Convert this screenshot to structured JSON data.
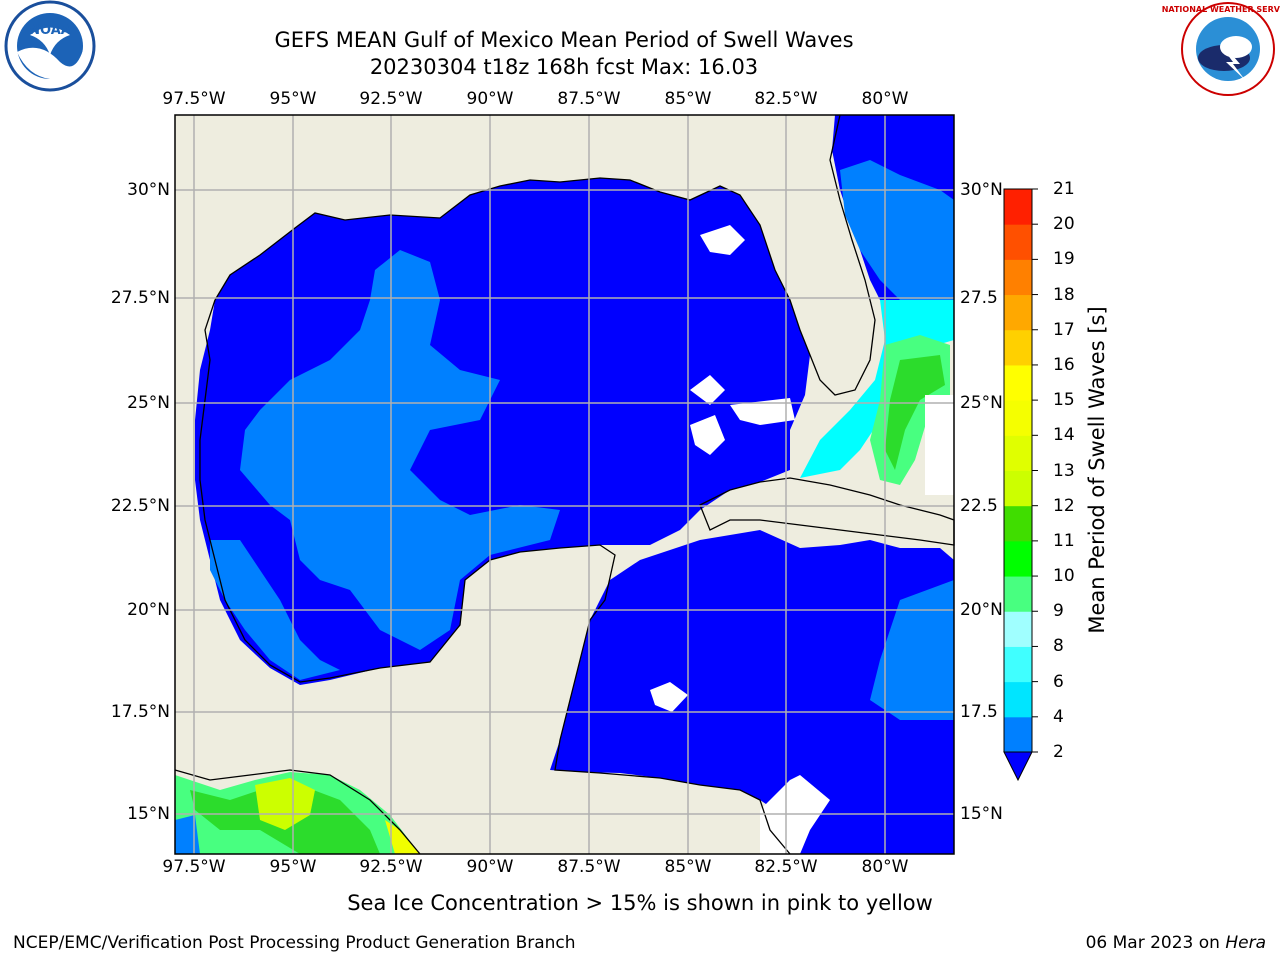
{
  "title": {
    "line1": "GEFS MEAN Gulf of Mexico Mean Period of Swell Waves",
    "line2": "20230304 t18z 168h fcst   Max: 16.03"
  },
  "map": {
    "longitude_labels": [
      "97.5°W",
      "95°W",
      "92.5°W",
      "90°W",
      "87.5°W",
      "85°W",
      "82.5°W",
      "80°W"
    ],
    "latitude_labels_left": [
      "30°N",
      "27.5°N",
      "25°N",
      "22.5°N",
      "20°N",
      "17.5°N",
      "15°N"
    ],
    "latitude_labels_right": [
      "30°N",
      "27.5",
      "25°N",
      "22.5",
      "20°N",
      "17.5",
      "15°N"
    ],
    "colors": {
      "land": "#eeeddf",
      "ocean_blue": "#0000ff",
      "swell_light": "#0080ff",
      "cyan": "#00ffff",
      "light_green": "#48ff80",
      "green": "#2cdc2c",
      "yellow_green": "#ccff00",
      "yellow": "#f0ff00"
    }
  },
  "colorbar": {
    "label": "Mean Period of Swell Waves [s]",
    "ticks": [
      "2",
      "4",
      "6",
      "8",
      "9",
      "10",
      "11",
      "12",
      "13",
      "14",
      "15",
      "16",
      "17",
      "18",
      "19",
      "20",
      "21"
    ],
    "colors": [
      "#0080ff",
      "#00e5ff",
      "#40ffff",
      "#a0ffff",
      "#48ff80",
      "#00ff00",
      "#40dd00",
      "#ccff00",
      "#e0ff00",
      "#f5ff00",
      "#ffff00",
      "#ffd000",
      "#ffa800",
      "#ff8000",
      "#ff5000",
      "#ff2000"
    ],
    "extend_color": "#0000ff"
  },
  "note": "Sea Ice Concentration > 15% is shown in pink to yellow",
  "footer": {
    "left": "NCEP/EMC/Verification Post Processing Product Generation Branch",
    "date": "06 Mar 2023 on",
    "machine": "Hera"
  },
  "logos": {
    "left": {
      "text": "NOAA"
    },
    "right": {
      "text": "NATIONAL WEATHER SERVICE"
    }
  }
}
